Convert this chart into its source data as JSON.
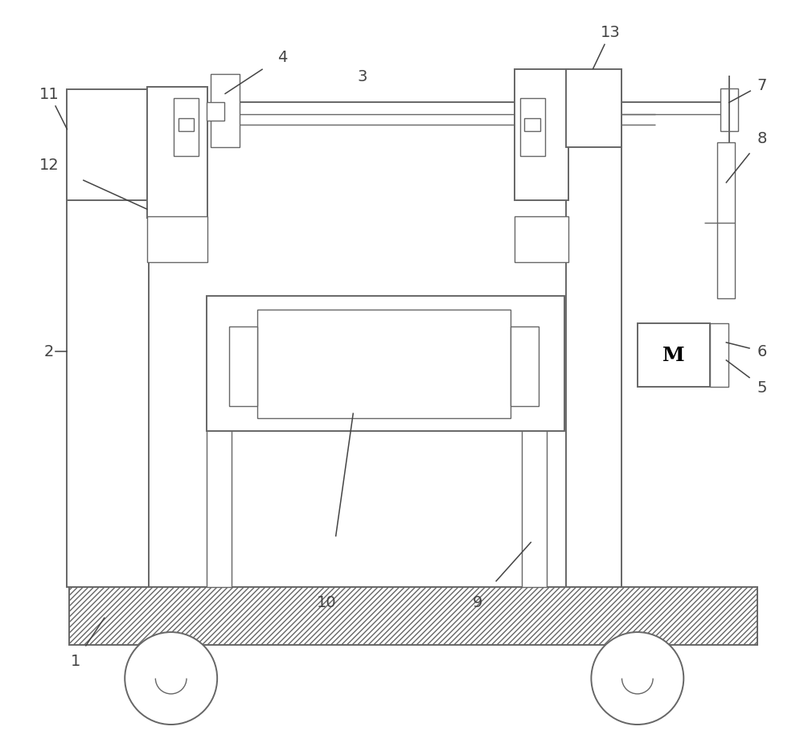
{
  "bg_color": "#ffffff",
  "line_color": "#666666",
  "lw": 1.4,
  "lw_thin": 1.0,
  "fig_width": 10.0,
  "fig_height": 9.2,
  "label_fs": 14,
  "label_color": "#444444"
}
